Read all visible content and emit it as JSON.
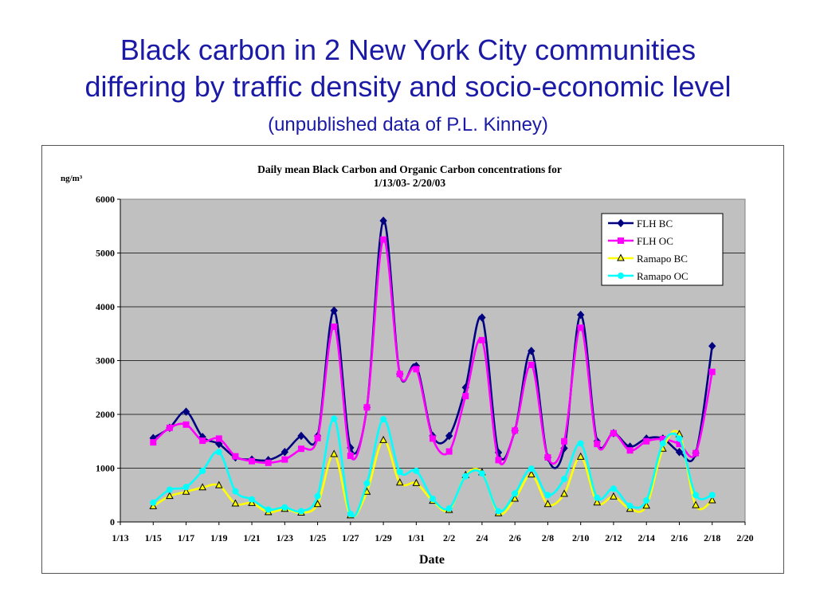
{
  "slide": {
    "title_line1": "Black carbon in 2 New York City communities",
    "title_line2": "differing by traffic density and socio-economic level",
    "subtitle": "(unpublished data of P.L. Kinney)"
  },
  "colors": {
    "title": "#1a1aa6",
    "plot_bg": "#c0c0c0",
    "flh_bc": "#000080",
    "flh_oc": "#ff00ff",
    "ramapo_bc": "#ffff00",
    "ramapo_oc": "#00ffff"
  },
  "chart_data": {
    "type": "line",
    "title_line1": "Daily mean Black Carbon and Organic Carbon concentrations for",
    "title_line2": "1/13/03- 2/20/03",
    "ylabel": "ng/m³",
    "xlabel": "Date",
    "ylim": [
      0,
      6000
    ],
    "yticks": [
      0,
      1000,
      2000,
      3000,
      4000,
      5000,
      6000
    ],
    "x_range": [
      "1/13",
      "2/20"
    ],
    "x_tick_labels": [
      "1/13",
      "1/15",
      "1/17",
      "1/19",
      "1/21",
      "1/23",
      "1/25",
      "1/27",
      "1/29",
      "1/31",
      "2/2",
      "2/4",
      "2/6",
      "2/8",
      "2/10",
      "2/12",
      "2/14",
      "2/16",
      "2/18",
      "2/20"
    ],
    "grid": "horizontal",
    "legend_position": "top-right",
    "x": [
      "1/15",
      "1/16",
      "1/17",
      "1/18",
      "1/19",
      "1/20",
      "1/21",
      "1/22",
      "1/23",
      "1/24",
      "1/25",
      "1/26",
      "1/27",
      "1/28",
      "1/29",
      "1/30",
      "1/31",
      "2/1",
      "2/2",
      "2/3",
      "2/4",
      "2/5",
      "2/6",
      "2/7",
      "2/8",
      "2/9",
      "2/10",
      "2/11",
      "2/12",
      "2/13",
      "2/14",
      "2/15",
      "2/16",
      "2/17",
      "2/18"
    ],
    "series": [
      {
        "name": "FLH BC",
        "color": "#000080",
        "marker": "diamond",
        "values": [
          1560,
          1750,
          2050,
          1580,
          1450,
          1200,
          1160,
          1150,
          1300,
          1600,
          1600,
          3930,
          1380,
          2130,
          5600,
          2750,
          2900,
          1600,
          1600,
          2500,
          3800,
          1290,
          1700,
          3180,
          1200,
          1370,
          3850,
          1500,
          1650,
          1400,
          1550,
          1550,
          1300,
          1280,
          3270
        ]
      },
      {
        "name": "FLH OC",
        "color": "#ff00ff",
        "marker": "square",
        "values": [
          1480,
          1750,
          1810,
          1510,
          1550,
          1220,
          1130,
          1100,
          1160,
          1360,
          1560,
          3630,
          1230,
          2130,
          5250,
          2750,
          2840,
          1550,
          1310,
          2340,
          3380,
          1150,
          1700,
          2920,
          1200,
          1500,
          3610,
          1450,
          1650,
          1330,
          1500,
          1540,
          1450,
          1280,
          2790
        ]
      },
      {
        "name": "Ramapo BC",
        "color": "#ffff00",
        "marker": "triangle",
        "values": [
          290,
          480,
          560,
          640,
          680,
          340,
          350,
          180,
          240,
          170,
          330,
          1260,
          120,
          560,
          1520,
          730,
          720,
          390,
          220,
          870,
          920,
          160,
          430,
          880,
          330,
          520,
          1210,
          360,
          470,
          240,
          300,
          1360,
          1630,
          310,
          400
        ]
      },
      {
        "name": "Ramapo OC",
        "color": "#00ffff",
        "marker": "circle",
        "values": [
          360,
          600,
          650,
          950,
          1300,
          570,
          420,
          230,
          270,
          200,
          480,
          1920,
          150,
          720,
          1910,
          930,
          950,
          430,
          250,
          850,
          900,
          200,
          530,
          990,
          500,
          800,
          1460,
          450,
          620,
          300,
          400,
          1460,
          1550,
          500,
          500
        ]
      }
    ]
  }
}
